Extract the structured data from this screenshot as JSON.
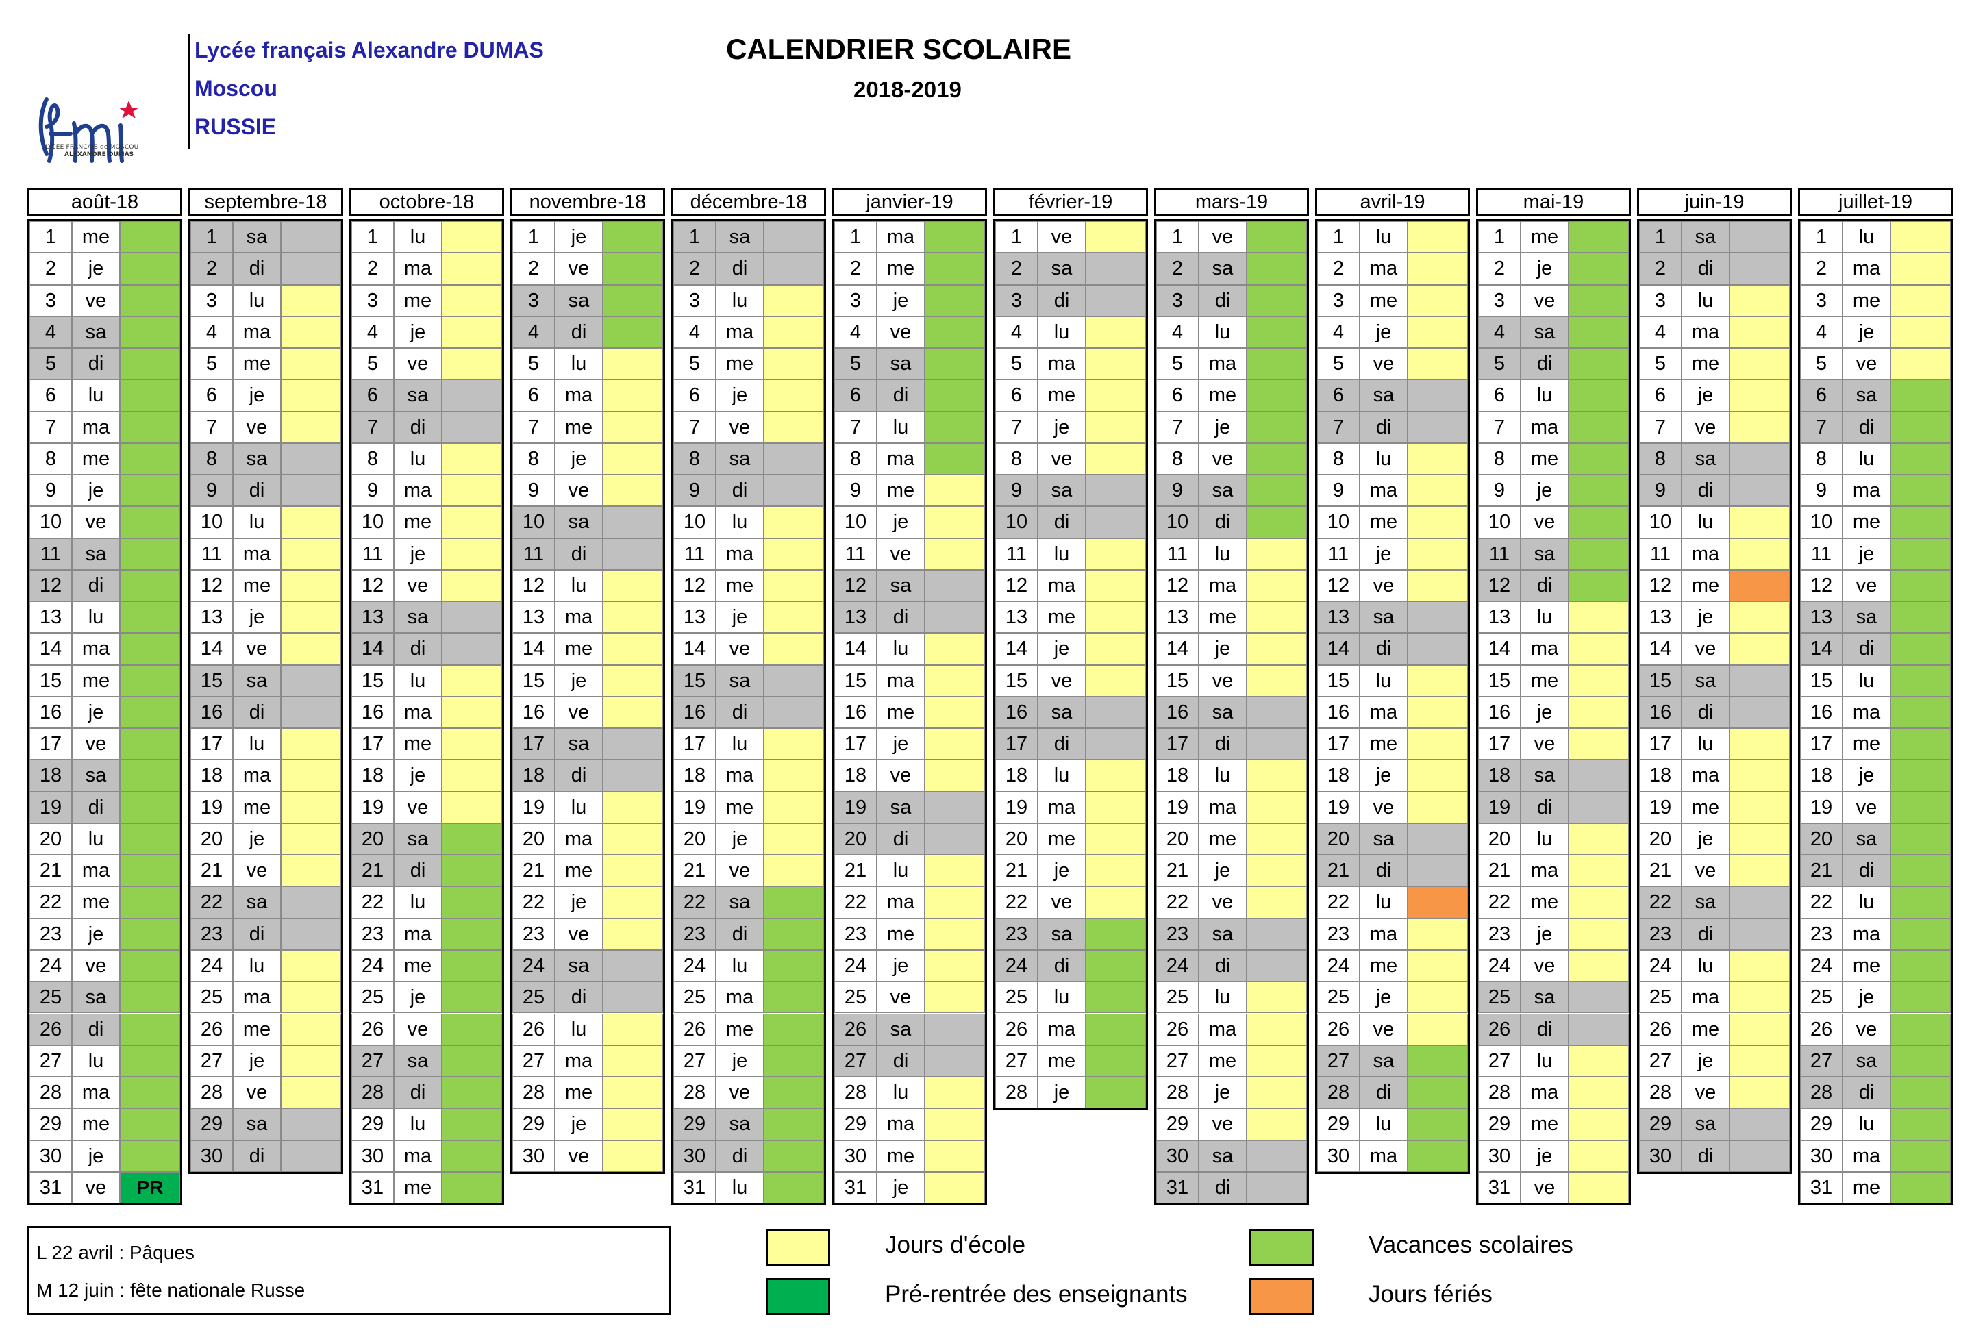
{
  "header": {
    "school_name": "Lycée français Alexandre DUMAS",
    "city": "Moscou",
    "country": "RUSSIE",
    "logo_text": "lfm",
    "logo_caption_line1": "LYCEE FRANCAIS de MOSCOU",
    "logo_caption_line2": "ALEXANDRE DUMAS",
    "title": "CALENDRIER SCOLAIRE",
    "year": "2018-2019"
  },
  "colors": {
    "school": "#ffff99",
    "holiday": "#92d050",
    "preentry": "#00b050",
    "ferie": "#f79646",
    "weekend": "#c0c0c0",
    "logo_blue": "#1f3f8f",
    "logo_star": "#e0103a"
  },
  "months": [
    {
      "name": "août-18",
      "start": 3,
      "days": 31,
      "school": [],
      "holidays": [
        [
          1,
          31
        ]
      ],
      "ferie": [],
      "pr": [
        31
      ]
    },
    {
      "name": "septembre-18",
      "start": 6,
      "days": 30,
      "school": [
        [
          1,
          30
        ]
      ],
      "holidays": [],
      "ferie": [],
      "pr": []
    },
    {
      "name": "octobre-18",
      "start": 1,
      "days": 31,
      "school": [
        [
          1,
          19
        ]
      ],
      "holidays": [
        [
          20,
          31
        ]
      ],
      "ferie": [],
      "pr": []
    },
    {
      "name": "novembre-18",
      "start": 4,
      "days": 30,
      "school": [
        [
          5,
          30
        ]
      ],
      "holidays": [
        [
          1,
          4
        ]
      ],
      "ferie": [],
      "pr": []
    },
    {
      "name": "décembre-18",
      "start": 6,
      "days": 31,
      "school": [
        [
          1,
          21
        ]
      ],
      "holidays": [
        [
          22,
          31
        ]
      ],
      "ferie": [],
      "pr": []
    },
    {
      "name": "janvier-19",
      "start": 2,
      "days": 31,
      "school": [
        [
          9,
          31
        ]
      ],
      "holidays": [
        [
          1,
          8
        ]
      ],
      "ferie": [],
      "pr": []
    },
    {
      "name": "février-19",
      "start": 5,
      "days": 28,
      "school": [
        [
          1,
          22
        ]
      ],
      "holidays": [
        [
          23,
          28
        ]
      ],
      "ferie": [],
      "pr": []
    },
    {
      "name": "mars-19",
      "start": 5,
      "days": 31,
      "school": [
        [
          11,
          31
        ]
      ],
      "holidays": [
        [
          1,
          10
        ]
      ],
      "ferie": [],
      "pr": []
    },
    {
      "name": "avril-19",
      "start": 1,
      "days": 30,
      "school": [
        [
          1,
          26
        ]
      ],
      "holidays": [
        [
          27,
          30
        ]
      ],
      "ferie": [
        22
      ],
      "pr": []
    },
    {
      "name": "mai-19",
      "start": 3,
      "days": 31,
      "school": [
        [
          13,
          31
        ]
      ],
      "holidays": [
        [
          1,
          12
        ]
      ],
      "ferie": [],
      "pr": []
    },
    {
      "name": "juin-19",
      "start": 6,
      "days": 30,
      "school": [
        [
          1,
          30
        ]
      ],
      "holidays": [],
      "ferie": [
        12
      ],
      "pr": []
    },
    {
      "name": "juillet-19",
      "start": 1,
      "days": 31,
      "school": [
        [
          1,
          5
        ]
      ],
      "holidays": [
        [
          6,
          31
        ]
      ],
      "ferie": [],
      "pr": []
    }
  ],
  "weekdays": [
    "lu",
    "ma",
    "me",
    "je",
    "ve",
    "sa",
    "di"
  ],
  "pr_label": "PR",
  "notes": [
    "L 22 avril : Pâques",
    "M 12 juin : fête nationale Russe"
  ],
  "legend": {
    "school": "Jours d'école",
    "preentry": "Pré-rentrée des enseignants",
    "holiday": "Vacances scolaires",
    "ferie": "Jours fériés"
  }
}
